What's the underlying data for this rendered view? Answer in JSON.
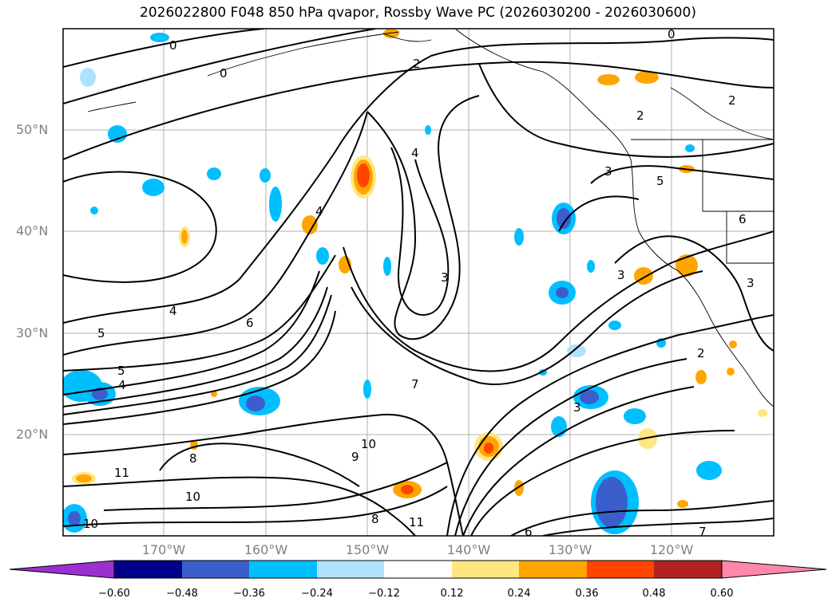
{
  "title": "2026022800 F048 850 hPa qvapor, Rossby Wave PC (2026030200 - 2026030600)",
  "lat_labels": [
    "50°N",
    "40°N",
    "30°N",
    "20°N"
  ],
  "lon_labels": [
    "170°W",
    "160°W",
    "150°W",
    "140°W",
    "130°W",
    "120°W"
  ],
  "colorbar": {
    "ticks": [
      "−0.60",
      "−0.48",
      "−0.36",
      "−0.24",
      "−0.12",
      "0.12",
      "0.24",
      "0.36",
      "0.48",
      "0.60"
    ],
    "colors": [
      "#9b30d0",
      "#00008b",
      "#3a5fcd",
      "#00bfff",
      "#b0e2ff",
      "#ffffff",
      "#ffe680",
      "#ffa500",
      "#ff4500",
      "#b22222",
      "#ff88aa"
    ]
  },
  "contour_labels": [
    "0",
    "0",
    "0",
    "2",
    "2",
    "2",
    "3",
    "3",
    "3",
    "3",
    "4",
    "4",
    "4",
    "4",
    "5",
    "5",
    "5",
    "6",
    "6",
    "7",
    "8",
    "8",
    "9",
    "10",
    "10",
    "10",
    "11",
    "11",
    "3",
    "2",
    "6",
    "7"
  ]
}
